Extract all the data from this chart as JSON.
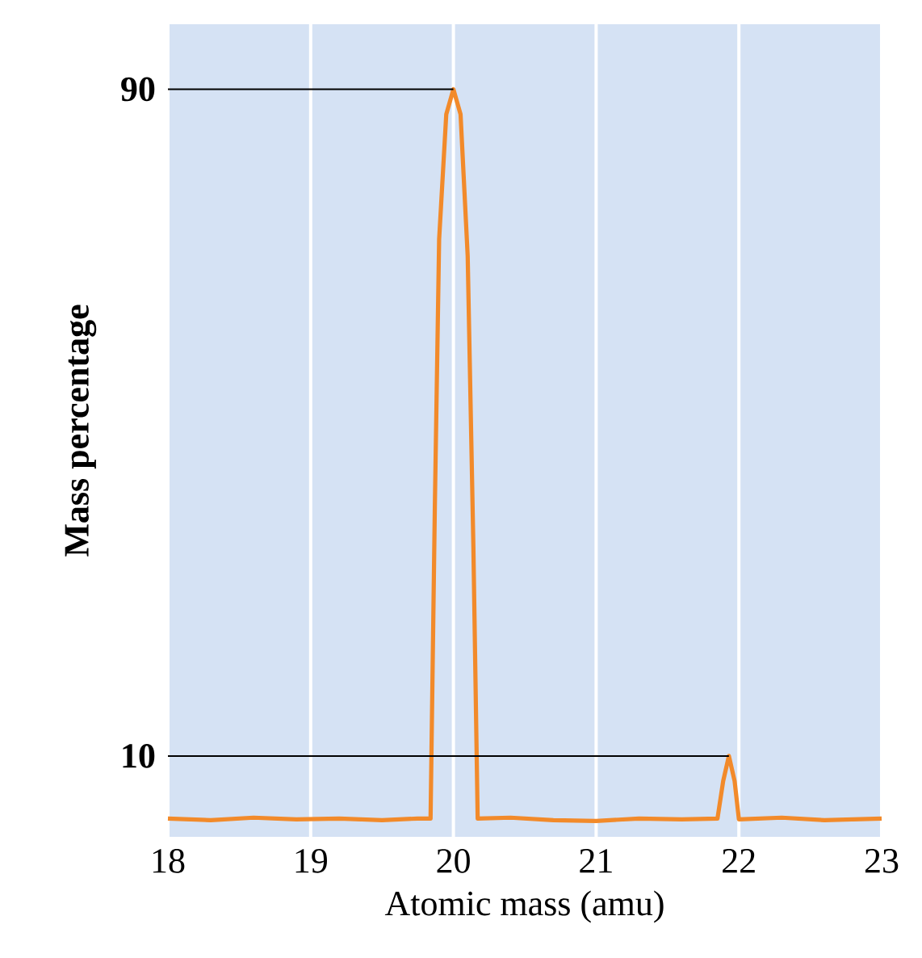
{
  "chart_data": {
    "type": "line",
    "xlabel": "Atomic mass (amu)",
    "ylabel": "Mass percentage",
    "xlim": [
      18,
      23
    ],
    "xticks": [
      18,
      19,
      20,
      21,
      22,
      23
    ],
    "ylim": [
      0.3,
      97.8
    ],
    "yticks": [
      10,
      90
    ],
    "grid": "x",
    "marker": "none",
    "line_style": "solid",
    "x": [
      18,
      18.3,
      18.6,
      18.9,
      19.2,
      19.5,
      19.75,
      19.84,
      19.87,
      19.9,
      19.95,
      20.0,
      20.05,
      20.1,
      20.14,
      20.17,
      20.4,
      20.7,
      21.0,
      21.3,
      21.6,
      21.85,
      21.89,
      21.93,
      21.97,
      22.0,
      22.3,
      22.6,
      23
    ],
    "series": [
      {
        "color": "#f28a2a",
        "values": [
          2.5,
          2.3,
          2.6,
          2.4,
          2.5,
          2.3,
          2.5,
          2.5,
          40,
          72,
          87,
          90,
          87,
          70,
          35,
          2.5,
          2.6,
          2.3,
          2.2,
          2.5,
          2.4,
          2.5,
          7,
          10,
          7,
          2.4,
          2.6,
          2.3,
          2.5
        ]
      }
    ],
    "ref_lines": [
      {
        "axis": "y",
        "value": 90,
        "color": "#000000"
      },
      {
        "axis": "y",
        "value": 10,
        "color": "#000000"
      }
    ]
  }
}
